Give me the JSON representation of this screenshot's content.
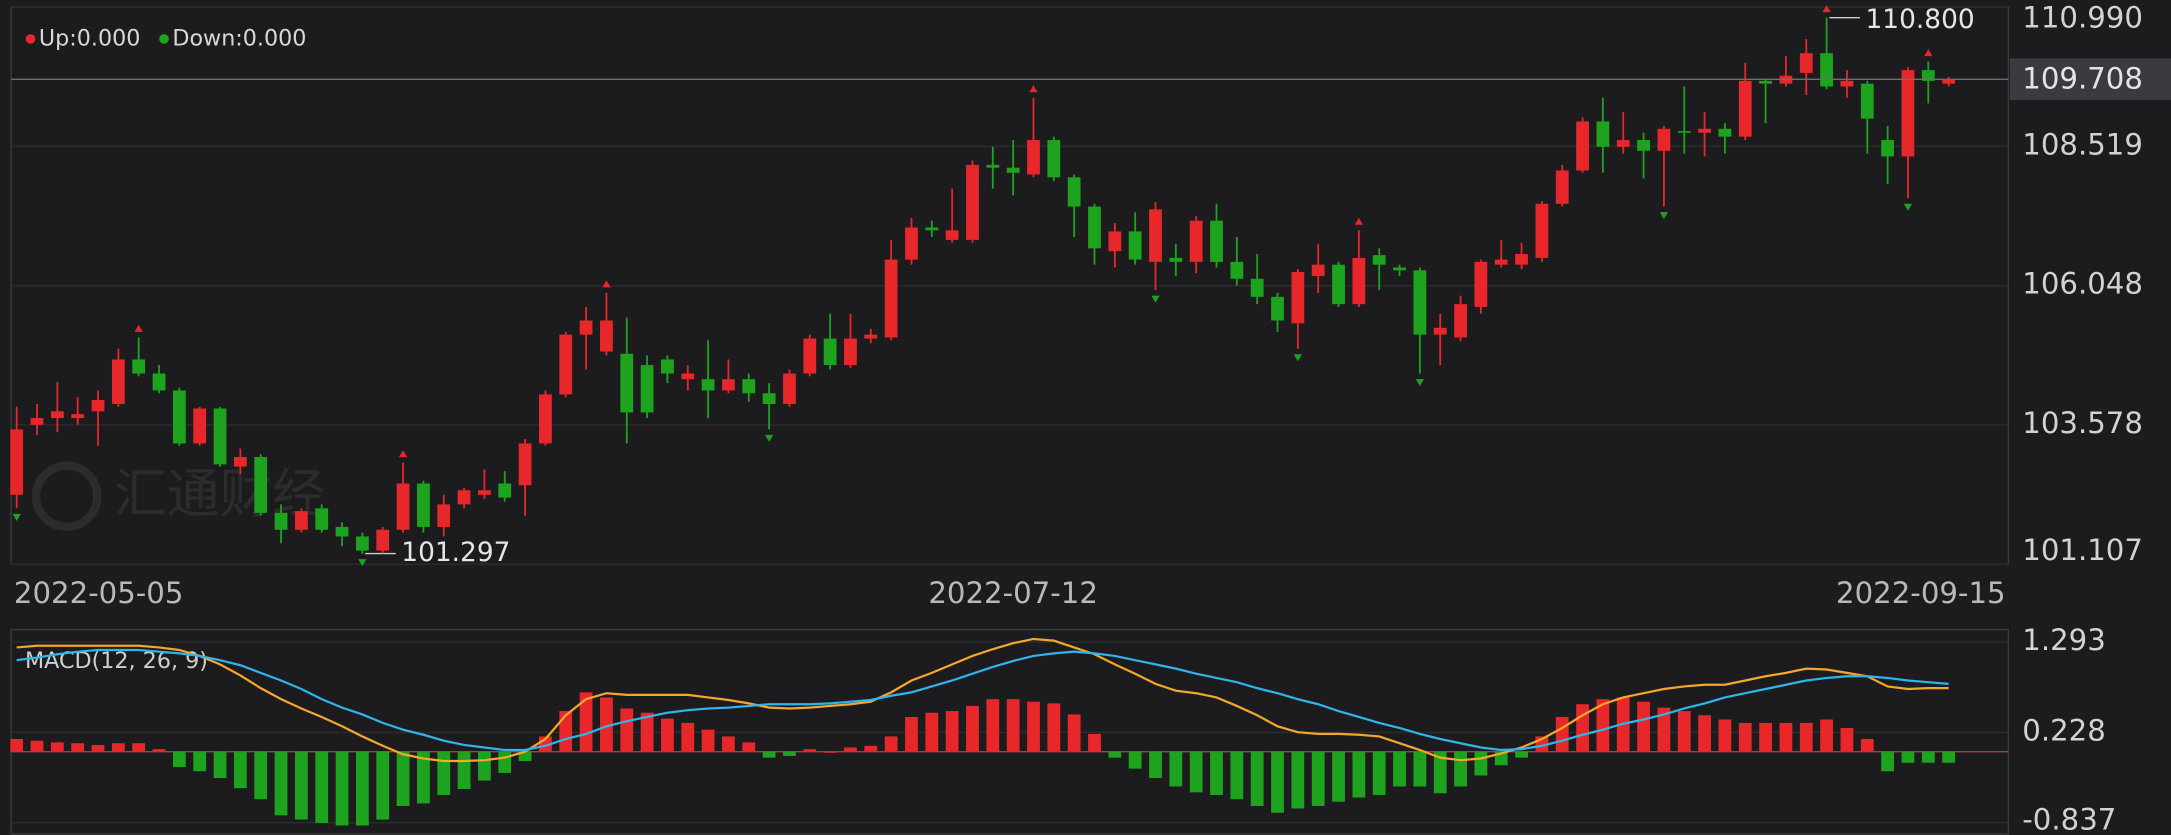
{
  "legend": {
    "up": "Up:0.000",
    "down": "Down:0.000"
  },
  "watermark": "汇通财经",
  "chart_data": [
    {
      "type": "candlestick",
      "up_color": "#e8272b",
      "down_color": "#1ea31e",
      "grid": true,
      "ylim": [
        101.107,
        110.99
      ],
      "yticks": [
        {
          "value": 110.99,
          "label": "110.990"
        },
        108.519,
        106.048,
        103.578,
        101.107
      ],
      "categories": [
        "2022-05-05",
        null,
        null,
        null,
        null,
        null,
        null,
        null,
        null,
        null,
        null,
        null,
        null,
        null,
        null,
        null,
        null,
        null,
        null,
        null,
        null,
        null,
        null,
        null,
        null,
        null,
        null,
        null,
        null,
        null,
        null,
        null,
        null,
        null,
        null,
        null,
        null,
        null,
        null,
        null,
        null,
        null,
        null,
        null,
        null,
        null,
        null,
        null,
        null,
        "2022-07-12",
        null,
        null,
        null,
        null,
        null,
        null,
        null,
        null,
        null,
        null,
        null,
        null,
        null,
        null,
        null,
        null,
        null,
        null,
        null,
        null,
        null,
        null,
        null,
        null,
        null,
        null,
        null,
        null,
        null,
        null,
        null,
        null,
        null,
        null,
        null,
        null,
        null,
        null,
        null,
        null,
        null,
        null,
        null,
        null,
        null,
        "2022-09-15"
      ],
      "open": [
        102.34,
        103.58,
        103.7,
        103.7,
        103.82,
        103.95,
        104.74,
        104.49,
        104.19,
        103.25,
        103.87,
        102.84,
        103.01,
        102.02,
        101.72,
        102.1,
        101.77,
        101.6,
        101.35,
        101.72,
        102.54,
        101.77,
        102.17,
        102.34,
        102.54,
        102.51,
        103.25,
        104.12,
        105.18,
        104.88,
        104.84,
        104.64,
        104.74,
        104.39,
        104.39,
        104.19,
        104.39,
        104.14,
        103.95,
        104.49,
        105.11,
        104.64,
        105.11,
        105.13,
        106.51,
        107.08,
        106.86,
        106.86,
        108.19,
        108.14,
        108.02,
        108.63,
        107.97,
        107.45,
        106.66,
        107.01,
        106.47,
        106.54,
        106.47,
        107.2,
        106.47,
        106.17,
        105.85,
        105.38,
        106.22,
        106.42,
        105.72,
        106.59,
        106.37,
        106.32,
        105.18,
        105.13,
        105.67,
        106.42,
        106.42,
        106.54,
        107.5,
        108.09,
        108.96,
        108.51,
        108.63,
        108.44,
        108.79,
        108.76,
        108.83,
        108.69,
        109.68,
        109.63,
        109.82,
        110.17,
        109.58,
        109.63,
        108.63,
        108.34,
        109.87,
        109.63
      ],
      "high": [
        103.9,
        103.95,
        104.34,
        104.07,
        104.19,
        104.93,
        105.13,
        104.64,
        104.24,
        103.9,
        103.9,
        103.16,
        103.06,
        102.17,
        102.1,
        102.17,
        101.85,
        101.67,
        101.77,
        102.91,
        102.59,
        102.34,
        102.46,
        102.79,
        102.76,
        103.33,
        104.19,
        105.23,
        105.67,
        105.92,
        105.48,
        104.81,
        104.81,
        104.64,
        105.08,
        104.74,
        104.49,
        104.32,
        104.56,
        105.18,
        105.55,
        105.55,
        105.28,
        106.86,
        107.25,
        107.2,
        107.77,
        108.27,
        108.51,
        108.63,
        109.38,
        108.69,
        108.02,
        107.5,
        107.16,
        107.35,
        107.53,
        106.79,
        107.28,
        107.5,
        106.91,
        106.61,
        105.92,
        106.34,
        106.79,
        106.47,
        107.03,
        106.71,
        106.42,
        106.37,
        105.55,
        105.87,
        106.51,
        106.86,
        106.81,
        107.55,
        108.19,
        109.03,
        109.38,
        109.13,
        108.76,
        108.88,
        109.58,
        109.13,
        108.93,
        110.0,
        109.72,
        110.12,
        110.42,
        110.8,
        109.87,
        109.68,
        108.88,
        109.92,
        110.02,
        109.75
      ],
      "low": [
        102.1,
        103.4,
        103.45,
        103.58,
        103.21,
        103.9,
        104.44,
        104.14,
        103.21,
        103.21,
        102.84,
        102.71,
        101.97,
        101.48,
        101.67,
        101.67,
        101.43,
        101.297,
        101.3,
        101.67,
        101.67,
        101.6,
        102.1,
        102.27,
        102.22,
        101.97,
        103.21,
        104.07,
        104.56,
        104.81,
        103.25,
        103.7,
        104.32,
        104.19,
        103.7,
        104.14,
        103.99,
        103.5,
        103.9,
        104.44,
        104.56,
        104.59,
        105.03,
        105.08,
        106.42,
        106.91,
        106.81,
        106.81,
        107.77,
        107.65,
        107.97,
        107.9,
        106.91,
        106.42,
        106.37,
        106.42,
        105.97,
        106.22,
        106.27,
        106.37,
        106.05,
        105.72,
        105.23,
        104.93,
        105.92,
        105.67,
        105.67,
        105.97,
        106.22,
        104.49,
        104.64,
        105.06,
        105.55,
        106.37,
        106.34,
        106.47,
        107.45,
        108.05,
        108.05,
        108.39,
        107.95,
        107.45,
        108.39,
        108.34,
        108.39,
        108.63,
        108.93,
        109.58,
        109.43,
        109.53,
        109.38,
        108.39,
        107.85,
        107.6,
        109.28,
        109.58
      ],
      "close": [
        103.5,
        103.7,
        103.82,
        103.77,
        104.02,
        104.74,
        104.49,
        104.19,
        103.25,
        103.87,
        102.88,
        103.01,
        102.02,
        101.72,
        102.05,
        101.72,
        101.6,
        101.35,
        101.72,
        102.54,
        101.77,
        102.17,
        102.42,
        102.42,
        102.29,
        103.25,
        104.12,
        105.18,
        105.43,
        105.43,
        103.8,
        103.8,
        104.49,
        104.49,
        104.19,
        104.39,
        104.14,
        103.95,
        104.49,
        105.11,
        104.64,
        105.11,
        105.18,
        106.51,
        107.08,
        107.03,
        107.03,
        108.19,
        108.14,
        108.05,
        108.63,
        107.97,
        107.45,
        106.71,
        107.01,
        106.51,
        107.4,
        106.47,
        107.2,
        106.47,
        106.17,
        105.85,
        105.43,
        106.29,
        106.42,
        105.72,
        106.54,
        106.42,
        106.32,
        105.18,
        105.3,
        105.72,
        106.47,
        106.51,
        106.61,
        107.5,
        108.09,
        108.96,
        108.51,
        108.63,
        108.44,
        108.83,
        108.76,
        108.83,
        108.69,
        109.68,
        109.63,
        109.77,
        110.17,
        109.58,
        109.68,
        109.01,
        108.34,
        109.87,
        109.68,
        109.708
      ],
      "high_labels": [
        null,
        null,
        null,
        null,
        null,
        null,
        null,
        null,
        null,
        null,
        null,
        null,
        null,
        null,
        null,
        null,
        null,
        null,
        null,
        null,
        null,
        null,
        null,
        null,
        null,
        null,
        null,
        null,
        null,
        null,
        null,
        null,
        null,
        null,
        null,
        null,
        null,
        null,
        null,
        null,
        null,
        null,
        null,
        null,
        null,
        null,
        null,
        null,
        null,
        null,
        null,
        null,
        null,
        null,
        null,
        null,
        null,
        null,
        null,
        null,
        null,
        null,
        null,
        null,
        null,
        null,
        null,
        null,
        null,
        null,
        null,
        null,
        null,
        null,
        null,
        null,
        null,
        null,
        null,
        null,
        null,
        null,
        null,
        null,
        null,
        null,
        null,
        null,
        null,
        "110.800",
        null,
        null,
        null,
        null,
        null,
        null
      ],
      "low_labels": [
        null,
        null,
        null,
        null,
        null,
        null,
        null,
        null,
        null,
        null,
        null,
        null,
        null,
        null,
        null,
        null,
        null,
        "101.297",
        null,
        null,
        null,
        null,
        null,
        null,
        null,
        null,
        null,
        null,
        null,
        null,
        null,
        null,
        null,
        null,
        null,
        null,
        null,
        null,
        null,
        null,
        null,
        null,
        null,
        null,
        null,
        null,
        null,
        null,
        null,
        null,
        null,
        null,
        null,
        null,
        null,
        null,
        null,
        null,
        null,
        null,
        null,
        null,
        null,
        null,
        null,
        null,
        null,
        null,
        null,
        null,
        null,
        null,
        null,
        null,
        null,
        null,
        null,
        null,
        null,
        null,
        null,
        null,
        null,
        null,
        null,
        null,
        null,
        null,
        null,
        null,
        null,
        null,
        null,
        null,
        null,
        null
      ],
      "close_labels": [
        null,
        null,
        null,
        null,
        null,
        null,
        null,
        null,
        null,
        null,
        null,
        null,
        null,
        null,
        null,
        null,
        null,
        null,
        null,
        null,
        null,
        null,
        null,
        null,
        null,
        null,
        null,
        null,
        null,
        null,
        null,
        null,
        null,
        null,
        null,
        null,
        null,
        null,
        null,
        null,
        null,
        null,
        null,
        null,
        null,
        null,
        null,
        null,
        null,
        null,
        null,
        null,
        null,
        null,
        null,
        null,
        null,
        null,
        null,
        null,
        null,
        null,
        null,
        null,
        null,
        null,
        null,
        null,
        null,
        null,
        null,
        null,
        null,
        null,
        null,
        null,
        null,
        null,
        null,
        null,
        null,
        null,
        null,
        null,
        null,
        null,
        null,
        null,
        null,
        null,
        null,
        null,
        null,
        null,
        null,
        "109.708"
      ]
    },
    {
      "type": "macd",
      "title": "MACD(12, 26, 9)",
      "grid": true,
      "ylim": [
        -0.97,
        1.44
      ],
      "yticks": [
        1.293,
        0.228,
        -0.837
      ],
      "histogram": {
        "up_color": "#e8272b",
        "down_color": "#1ea31e",
        "values": [
          0.15,
          0.13,
          0.11,
          0.1,
          0.08,
          0.1,
          0.1,
          0.03,
          -0.18,
          -0.23,
          -0.31,
          -0.43,
          -0.56,
          -0.75,
          -0.8,
          -0.84,
          -0.87,
          -0.87,
          -0.8,
          -0.64,
          -0.61,
          -0.51,
          -0.44,
          -0.34,
          -0.25,
          -0.11,
          0.18,
          0.48,
          0.7,
          0.64,
          0.51,
          0.46,
          0.39,
          0.34,
          0.26,
          0.18,
          0.11,
          -0.07,
          -0.05,
          0.03,
          0.0,
          0.05,
          0.07,
          0.18,
          0.41,
          0.46,
          0.48,
          0.54,
          0.62,
          0.62,
          0.59,
          0.57,
          0.44,
          0.21,
          -0.07,
          -0.2,
          -0.31,
          -0.41,
          -0.48,
          -0.51,
          -0.56,
          -0.64,
          -0.72,
          -0.67,
          -0.64,
          -0.59,
          -0.54,
          -0.51,
          -0.41,
          -0.41,
          -0.49,
          -0.41,
          -0.28,
          -0.16,
          -0.07,
          0.18,
          0.41,
          0.56,
          0.62,
          0.64,
          0.59,
          0.52,
          0.48,
          0.43,
          0.38,
          0.34,
          0.34,
          0.34,
          0.34,
          0.38,
          0.28,
          0.15,
          -0.23,
          -0.13,
          -0.13,
          -0.13
        ]
      },
      "series": [
        {
          "color": "#f4a72a",
          "values": [
            1.23,
            1.25,
            1.25,
            1.25,
            1.25,
            1.25,
            1.25,
            1.23,
            1.2,
            1.13,
            1.03,
            0.9,
            0.75,
            0.62,
            0.51,
            0.41,
            0.3,
            0.18,
            0.07,
            -0.03,
            -0.08,
            -0.11,
            -0.11,
            -0.1,
            -0.07,
            0.0,
            0.15,
            0.43,
            0.62,
            0.69,
            0.67,
            0.67,
            0.67,
            0.67,
            0.64,
            0.61,
            0.57,
            0.52,
            0.51,
            0.52,
            0.54,
            0.56,
            0.59,
            0.7,
            0.84,
            0.93,
            1.03,
            1.13,
            1.21,
            1.28,
            1.33,
            1.31,
            1.23,
            1.15,
            1.03,
            0.92,
            0.8,
            0.72,
            0.69,
            0.64,
            0.54,
            0.43,
            0.3,
            0.23,
            0.21,
            0.21,
            0.2,
            0.18,
            0.1,
            0.02,
            -0.07,
            -0.1,
            -0.08,
            -0.02,
            0.05,
            0.15,
            0.28,
            0.43,
            0.56,
            0.64,
            0.69,
            0.74,
            0.77,
            0.79,
            0.79,
            0.84,
            0.89,
            0.93,
            0.98,
            0.97,
            0.93,
            0.89,
            0.77,
            0.74,
            0.75,
            0.75
          ]
        },
        {
          "color": "#2fb4ec",
          "values": [
            1.08,
            1.11,
            1.15,
            1.18,
            1.2,
            1.2,
            1.2,
            1.18,
            1.16,
            1.13,
            1.08,
            1.02,
            0.93,
            0.84,
            0.74,
            0.62,
            0.52,
            0.44,
            0.34,
            0.26,
            0.2,
            0.13,
            0.08,
            0.05,
            0.02,
            0.02,
            0.07,
            0.15,
            0.21,
            0.3,
            0.36,
            0.41,
            0.46,
            0.49,
            0.51,
            0.52,
            0.54,
            0.56,
            0.56,
            0.56,
            0.57,
            0.59,
            0.61,
            0.66,
            0.7,
            0.77,
            0.84,
            0.92,
            1.0,
            1.07,
            1.13,
            1.16,
            1.18,
            1.16,
            1.13,
            1.08,
            1.03,
            0.98,
            0.92,
            0.87,
            0.82,
            0.75,
            0.69,
            0.62,
            0.56,
            0.48,
            0.41,
            0.34,
            0.28,
            0.21,
            0.15,
            0.1,
            0.05,
            0.02,
            0.03,
            0.07,
            0.13,
            0.2,
            0.26,
            0.33,
            0.38,
            0.44,
            0.51,
            0.57,
            0.64,
            0.69,
            0.74,
            0.79,
            0.84,
            0.87,
            0.89,
            0.89,
            0.87,
            0.84,
            0.82,
            0.8
          ]
        }
      ]
    }
  ]
}
